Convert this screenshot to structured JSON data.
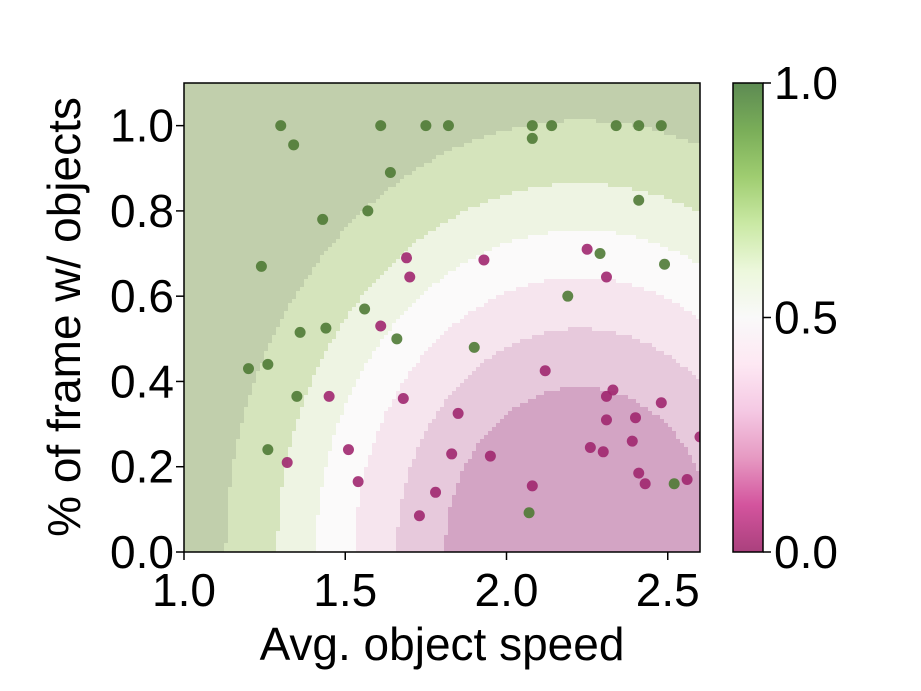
{
  "chart_data": {
    "type": "scatter",
    "title": "",
    "xlabel": "Avg. object speed",
    "ylabel": "% of frame w/ objects",
    "xlim": [
      1.0,
      2.6
    ],
    "ylim": [
      0.0,
      1.1
    ],
    "xticks": [
      1.0,
      1.5,
      2.0,
      2.5
    ],
    "xtick_labels": [
      "1.0",
      "1.5",
      "2.0",
      "2.5"
    ],
    "yticks": [
      0.0,
      0.2,
      0.4,
      0.6,
      0.8,
      1.0
    ],
    "ytick_labels": [
      "0.0",
      "0.2",
      "0.4",
      "0.6",
      "0.8",
      "1.0"
    ],
    "grid": false,
    "background": "filled decision-probability contours (PiYG colormap)",
    "colorbar": {
      "range": [
        0.0,
        1.0
      ],
      "ticks": [
        0.0,
        0.5,
        1.0
      ],
      "tick_labels": [
        "0.0",
        "0.5",
        "1.0"
      ],
      "low_color": "#8e0152",
      "mid_color": "#f7f7f7",
      "high_color": "#276419"
    },
    "contour_levels": [
      {
        "from": 0.0,
        "to": 0.42,
        "color": "#d3a4c4"
      },
      {
        "from": 0.42,
        "to": 0.57,
        "color": "#e7c9dc"
      },
      {
        "from": 0.57,
        "to": 0.7,
        "color": "#f6e5ee"
      },
      {
        "from": 0.7,
        "to": 0.82,
        "color": "#fbfafa"
      },
      {
        "from": 0.82,
        "to": 0.94,
        "color": "#eef4e3"
      },
      {
        "from": 0.94,
        "to": 1.1,
        "color": "#d5e4bc"
      },
      {
        "from": 1.1,
        "to": 9.99,
        "color": "#c1cfac"
      }
    ],
    "series": [
      {
        "color": "#4f7a35",
        "points": [
          [
            1.3,
            1.0
          ],
          [
            1.34,
            0.955
          ],
          [
            1.61,
            1.0
          ],
          [
            1.75,
            1.0
          ],
          [
            1.82,
            1.0
          ],
          [
            2.08,
            1.0
          ],
          [
            2.08,
            0.97
          ],
          [
            2.14,
            1.0
          ],
          [
            2.34,
            1.0
          ],
          [
            2.41,
            1.0
          ],
          [
            2.48,
            1.0
          ],
          [
            1.64,
            0.89
          ],
          [
            1.43,
            0.78
          ],
          [
            1.57,
            0.8
          ],
          [
            2.41,
            0.825
          ],
          [
            1.24,
            0.67
          ],
          [
            2.29,
            0.7
          ],
          [
            2.49,
            0.675
          ],
          [
            2.19,
            0.6
          ],
          [
            1.56,
            0.57
          ],
          [
            1.36,
            0.515
          ],
          [
            1.44,
            0.525
          ],
          [
            1.66,
            0.5
          ],
          [
            1.9,
            0.48
          ],
          [
            1.2,
            0.43
          ],
          [
            1.26,
            0.44
          ],
          [
            1.35,
            0.365
          ],
          [
            1.26,
            0.24
          ],
          [
            2.52,
            0.16
          ],
          [
            2.07,
            0.092
          ]
        ]
      },
      {
        "color": "#a0276f",
        "points": [
          [
            1.69,
            0.69
          ],
          [
            1.7,
            0.645
          ],
          [
            1.93,
            0.685
          ],
          [
            2.25,
            0.71
          ],
          [
            2.31,
            0.645
          ],
          [
            1.61,
            0.53
          ],
          [
            2.12,
            0.425
          ],
          [
            1.45,
            0.365
          ],
          [
            1.68,
            0.36
          ],
          [
            2.33,
            0.38
          ],
          [
            2.31,
            0.365
          ],
          [
            1.85,
            0.325
          ],
          [
            2.4,
            0.315
          ],
          [
            2.31,
            0.31
          ],
          [
            2.48,
            0.35
          ],
          [
            1.51,
            0.24
          ],
          [
            1.83,
            0.23
          ],
          [
            2.26,
            0.245
          ],
          [
            2.3,
            0.235
          ],
          [
            1.95,
            0.225
          ],
          [
            2.39,
            0.26
          ],
          [
            1.32,
            0.21
          ],
          [
            2.41,
            0.185
          ],
          [
            2.43,
            0.16
          ],
          [
            2.56,
            0.17
          ],
          [
            1.54,
            0.165
          ],
          [
            2.08,
            0.155
          ],
          [
            1.78,
            0.14
          ],
          [
            1.73,
            0.085
          ],
          [
            2.6,
            0.27
          ]
        ]
      }
    ]
  }
}
